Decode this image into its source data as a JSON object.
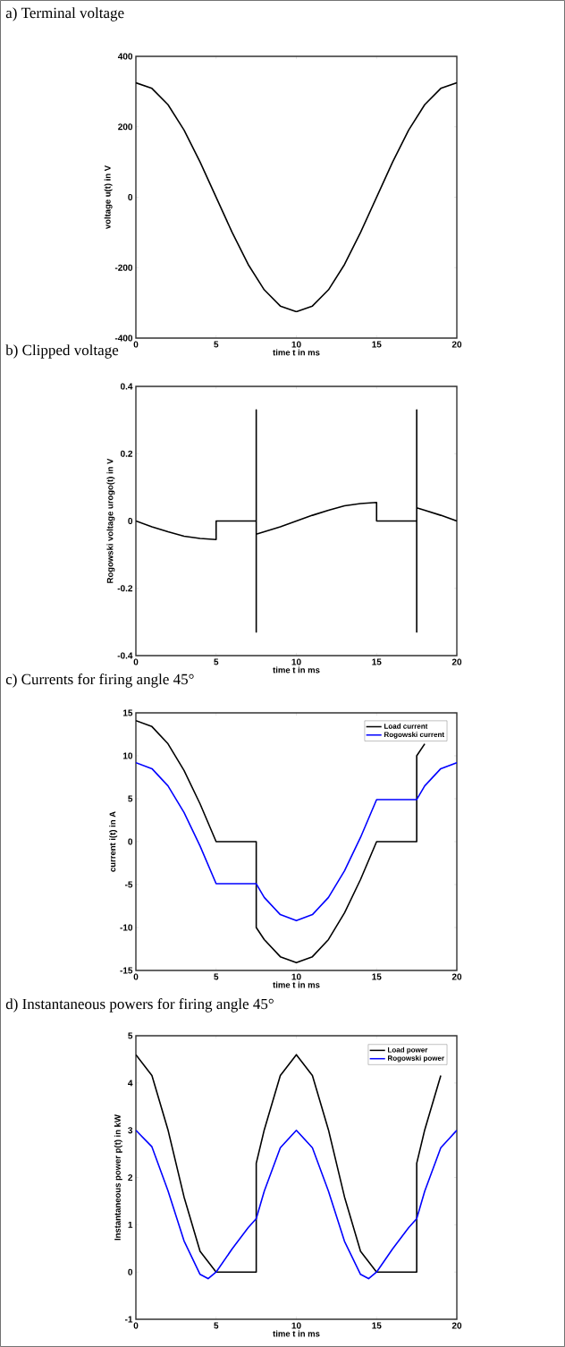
{
  "chart_data": [
    {
      "type": "line",
      "title": "a) Terminal voltage",
      "xlabel": "time t in ms",
      "ylabel": "voltage u(t) in V",
      "xlim": [
        0,
        20
      ],
      "ylim": [
        -400,
        400
      ],
      "xticks": [
        0,
        5,
        10,
        15,
        20
      ],
      "yticks": [
        -400,
        -200,
        0,
        200,
        400
      ],
      "series": [
        {
          "color": "#000000",
          "x": [
            0,
            1,
            2,
            3,
            4,
            5,
            6,
            7,
            8,
            9,
            10,
            11,
            12,
            13,
            14,
            15,
            16,
            17,
            18,
            19,
            20
          ],
          "values": [
            325,
            309,
            263,
            191,
            100,
            0,
            -100,
            -191,
            -263,
            -309,
            -325,
            -309,
            -263,
            -191,
            -100,
            0,
            100,
            191,
            263,
            309,
            325
          ]
        }
      ]
    },
    {
      "type": "line",
      "title": "b) Clipped voltage",
      "xlabel": "time t in ms",
      "ylabel": "Rogowski voltage urogo(t) in V",
      "xlim": [
        0,
        20
      ],
      "ylim": [
        -0.4,
        0.4
      ],
      "xticks": [
        0,
        5,
        10,
        15,
        20
      ],
      "yticks": [
        -0.4,
        -0.2,
        0,
        0.2,
        0.4
      ],
      "series": [
        {
          "color": "#000000",
          "x": [
            0,
            1,
            2,
            3,
            4,
            5,
            5,
            7.5,
            7.5,
            7.5,
            7.5,
            8,
            9,
            10,
            11,
            12,
            13,
            14,
            15,
            15,
            17.5,
            17.5,
            17.5,
            17.5,
            18,
            19,
            20
          ],
          "values": [
            0,
            -0.017,
            -0.032,
            -0.045,
            -0.052,
            -0.055,
            0,
            0,
            0.33,
            -0.33,
            -0.039,
            -0.032,
            -0.017,
            0,
            0.017,
            0.032,
            0.045,
            0.052,
            0.055,
            0,
            0,
            0.33,
            -0.33,
            0.039,
            0.032,
            0.017,
            0
          ]
        }
      ]
    },
    {
      "type": "line",
      "title": "c) Currents for firing angle 45°",
      "xlabel": "time t in ms",
      "ylabel": "current i(t) in A",
      "xlim": [
        0,
        20
      ],
      "ylim": [
        -15,
        15
      ],
      "xticks": [
        0,
        5,
        10,
        15,
        20
      ],
      "yticks": [
        -15,
        -10,
        -5,
        0,
        5,
        10,
        15
      ],
      "legend": "top right",
      "series": [
        {
          "name": "Load current",
          "color": "#000000",
          "x": [
            0,
            1,
            2,
            3,
            4,
            5,
            7.5,
            7.5,
            8,
            9,
            10,
            11,
            12,
            13,
            14,
            15,
            17.5,
            17.5,
            18
          ],
          "values": [
            14.1,
            13.4,
            11.4,
            8.3,
            4.4,
            0,
            0,
            -10,
            -11.4,
            -13.4,
            -14.1,
            -13.4,
            -11.4,
            -8.3,
            -4.4,
            0,
            0,
            10,
            11.4
          ]
        },
        {
          "name": "Rogowski current",
          "color": "#0000ff",
          "x": [
            0,
            1,
            2,
            3,
            4,
            5,
            7.5,
            8,
            9,
            10,
            11,
            12,
            13,
            14,
            15,
            17.5,
            18,
            19,
            20
          ],
          "values": [
            9.2,
            8.5,
            6.5,
            3.4,
            -0.5,
            -4.9,
            -4.9,
            -6.5,
            -8.5,
            -9.2,
            -8.5,
            -6.5,
            -3.4,
            0.5,
            4.9,
            4.9,
            6.5,
            8.5,
            9.2
          ]
        }
      ]
    },
    {
      "type": "line",
      "title": "d) Instantaneous powers for firing angle 45°",
      "xlabel": "time t in ms",
      "ylabel": "Instantaneous power p(t) in kW",
      "xlim": [
        0,
        20
      ],
      "ylim": [
        -1,
        5
      ],
      "xticks": [
        0,
        5,
        10,
        15,
        20
      ],
      "yticks": [
        -1,
        0,
        1,
        2,
        3,
        4,
        5
      ],
      "legend": "top right",
      "series": [
        {
          "name": "Load power",
          "color": "#000000",
          "x": [
            0,
            1,
            2,
            3,
            4,
            5,
            7.5,
            7.5,
            8,
            9,
            10,
            11,
            12,
            13,
            14,
            15,
            17.5,
            17.5,
            18,
            19
          ],
          "values": [
            4.6,
            4.16,
            3.01,
            1.59,
            0.44,
            0,
            0,
            2.3,
            3.01,
            4.16,
            4.6,
            4.16,
            3.01,
            1.59,
            0.44,
            0,
            0,
            2.3,
            3.01,
            4.16
          ]
        },
        {
          "name": "Rogowski power",
          "color": "#0000ff",
          "x": [
            0,
            1,
            2,
            3,
            4,
            4.5,
            5,
            6,
            7,
            7.5,
            8,
            9,
            10,
            11,
            12,
            13,
            14,
            14.5,
            15,
            16,
            17,
            17.5,
            18,
            19,
            20
          ],
          "values": [
            3.0,
            2.65,
            1.72,
            0.66,
            -0.05,
            -0.14,
            0,
            0.49,
            0.94,
            1.13,
            1.71,
            2.63,
            3.0,
            2.63,
            1.71,
            0.65,
            -0.05,
            -0.14,
            0,
            0.49,
            0.94,
            1.13,
            1.71,
            2.63,
            3.0
          ]
        }
      ]
    }
  ]
}
